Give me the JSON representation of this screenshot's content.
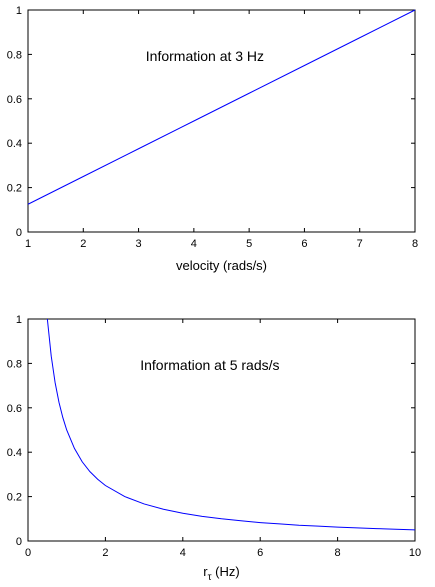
{
  "chart_data": [
    {
      "type": "line",
      "title": "",
      "xlabel": "velocity (rads/s)",
      "xlabel_sub": "",
      "ylabel": "",
      "xlim": [
        1,
        8
      ],
      "ylim": [
        0,
        1
      ],
      "xticks": [
        1,
        2,
        3,
        4,
        5,
        6,
        7,
        8
      ],
      "yticks": [
        0,
        0.2,
        0.4,
        0.6,
        0.8,
        1
      ],
      "yticklabels": [
        "0",
        "0.2",
        "0.4",
        "0.6",
        "0.8",
        "1"
      ],
      "grid": false,
      "annotation": {
        "text": "Information at 3 Hz",
        "x": 4.2,
        "y": 0.77
      },
      "series": [
        {
          "color": "#0000ff",
          "x": [
            1,
            2,
            3,
            4,
            5,
            6,
            7,
            8
          ],
          "y": [
            0.125,
            0.25,
            0.375,
            0.5,
            0.625,
            0.75,
            0.875,
            1.0
          ]
        }
      ]
    },
    {
      "type": "line",
      "title": "",
      "xlabel": "r",
      "xlabel_sub": "τ",
      "xlabel_suffix": " (Hz)",
      "ylabel": "",
      "xlim": [
        0,
        10
      ],
      "ylim": [
        0,
        1
      ],
      "xticks": [
        0,
        2,
        4,
        6,
        8,
        10
      ],
      "yticks": [
        0,
        0.2,
        0.4,
        0.6,
        0.8,
        1
      ],
      "yticklabels": [
        "0",
        "0.2",
        "0.4",
        "0.6",
        "0.8",
        "1"
      ],
      "grid": false,
      "annotation": {
        "text": "Information at 5 rads/s",
        "x": 4.7,
        "y": 0.77
      },
      "series": [
        {
          "color": "#0000ff",
          "x": [
            0.5,
            0.6,
            0.7,
            0.8,
            0.9,
            1.0,
            1.2,
            1.4,
            1.6,
            1.8,
            2.0,
            2.5,
            3.0,
            3.5,
            4.0,
            4.5,
            5.0,
            5.5,
            6.0,
            6.5,
            7.0,
            7.5,
            8.0,
            8.5,
            9.0,
            9.5,
            10.0
          ],
          "y": [
            1.0,
            0.833,
            0.714,
            0.625,
            0.556,
            0.5,
            0.417,
            0.357,
            0.3125,
            0.278,
            0.25,
            0.2,
            0.167,
            0.143,
            0.125,
            0.111,
            0.1,
            0.091,
            0.083,
            0.077,
            0.071,
            0.067,
            0.0625,
            0.059,
            0.056,
            0.053,
            0.05
          ]
        }
      ]
    }
  ]
}
